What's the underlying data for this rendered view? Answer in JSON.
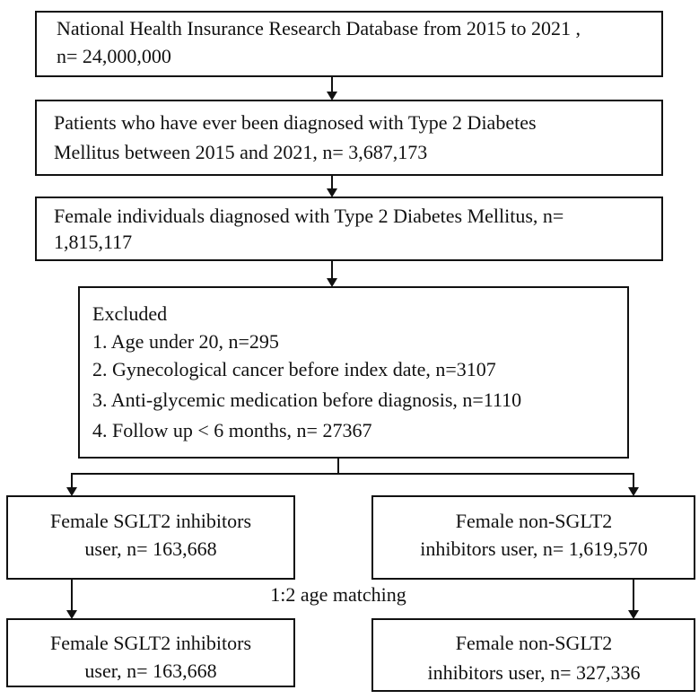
{
  "nodes": [
    {
      "lines": [
        "National Health Insurance Research Database from 2015 to 2021 ,",
        "n= 24,000,000"
      ]
    },
    {
      "lines": [
        "Patients who have ever been diagnosed with Type 2 Diabetes",
        "Mellitus between 2015 and 2021, n= 3,687,173"
      ]
    },
    {
      "lines": [
        "Female individuals diagnosed with Type 2 Diabetes Mellitus, n=",
        "1,815,117"
      ]
    },
    {
      "lines": [
        "Excluded",
        "1. Age under 20, n=295",
        "2. Gynecological cancer before index date, n=3107",
        "3. Anti-glycemic medication before diagnosis, n=1110",
        "4. Follow up < 6 months, n= 27367"
      ]
    },
    {
      "lines": [
        "Female SGLT2 inhibitors",
        "user, n= 163,668"
      ]
    },
    {
      "lines": [
        "Female non-SGLT2",
        "inhibitors user, n= 1,619,570"
      ]
    },
    {
      "lines": [
        "Female SGLT2 inhibitors",
        "user, n= 163,668"
      ]
    },
    {
      "lines": [
        "Female non-SGLT2",
        "inhibitors user, n= 327,336"
      ]
    }
  ],
  "edge_label": "1:2 age matching"
}
